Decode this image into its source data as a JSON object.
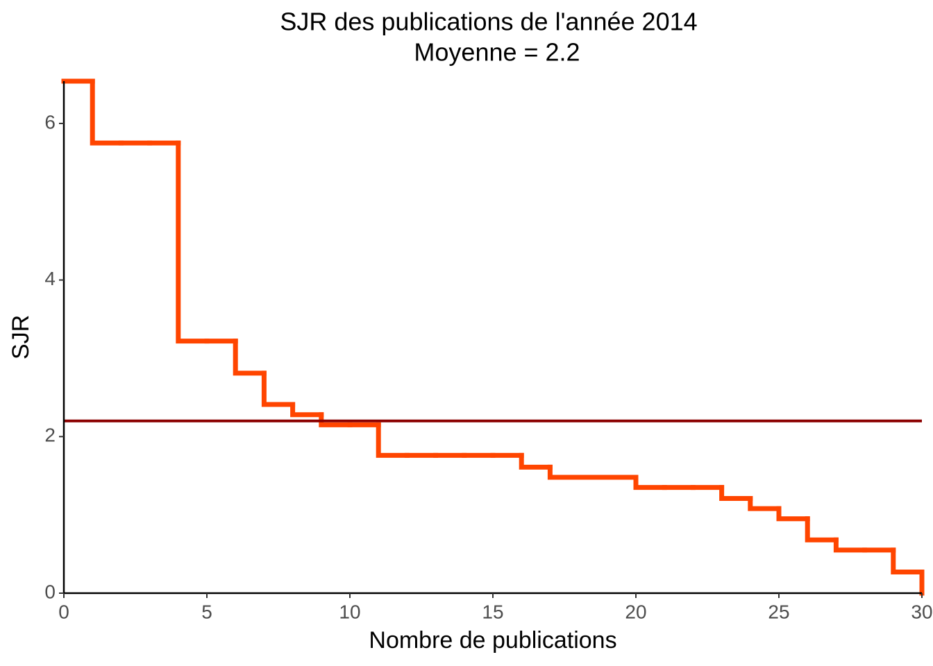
{
  "chart_data": {
    "type": "line",
    "step": "post",
    "title": "SJR des publications de l'année 2014",
    "subtitle": "Moyenne = 2.2",
    "x_label": "Nombre de publications",
    "y_label": "SJR",
    "x": [
      0,
      1,
      2,
      3,
      4,
      5,
      6,
      7,
      8,
      9,
      10,
      11,
      12,
      13,
      14,
      15,
      16,
      17,
      18,
      19,
      20,
      21,
      22,
      23,
      24,
      25,
      26,
      27,
      28,
      29,
      30
    ],
    "series": [
      {
        "color": "#ff4500",
        "values": [
          6.54,
          5.75,
          5.75,
          5.75,
          3.22,
          3.22,
          2.81,
          2.41,
          2.28,
          2.15,
          2.15,
          1.76,
          1.76,
          1.76,
          1.76,
          1.76,
          1.61,
          1.48,
          1.48,
          1.48,
          1.35,
          1.35,
          1.35,
          1.21,
          1.08,
          0.95,
          0.68,
          0.55,
          0.55,
          0.27,
          0
        ]
      }
    ],
    "hlines": [
      {
        "value": 2.2,
        "color": "#8b0000"
      }
    ],
    "xlim": [
      0,
      30
    ],
    "xticks": [
      0,
      5,
      10,
      15,
      20,
      25,
      30
    ],
    "ylim": [
      0,
      6.54
    ],
    "yticks": [
      0,
      2,
      4,
      6
    ],
    "grid": false
  }
}
